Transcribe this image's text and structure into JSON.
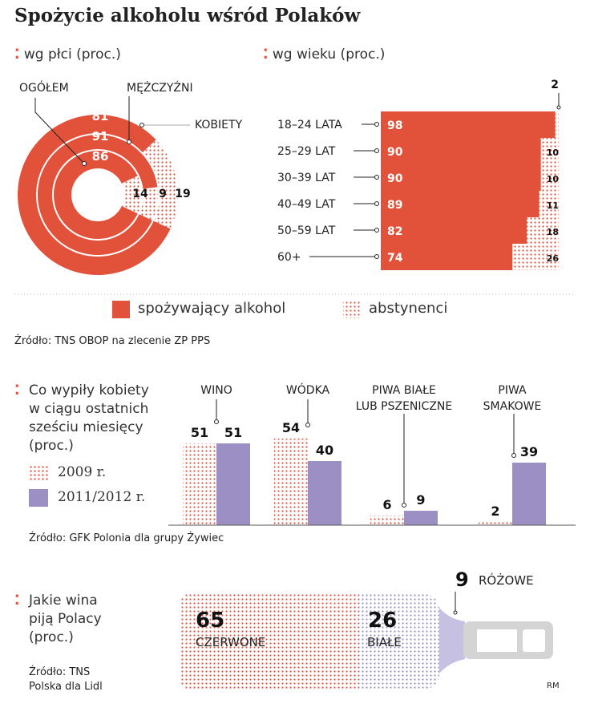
{
  "title": "Spożycie alkoholu wśród Polaków",
  "colors": {
    "red": "#e2523b",
    "purple": "#9b8fc4",
    "grey": "#d4d4d4"
  },
  "legend": {
    "drinking": "spożywający alkohol",
    "abstinent": "abstynenci"
  },
  "source1": "Źródło: TNS OBOP na zlecenie ZP PPS",
  "source2": "Źródło: GFK Polonia dla grupy Żywiec",
  "source3a": "Źródło: TNS",
  "source3b": "Polska dla Lidl",
  "author": "RM",
  "chart_data": [
    {
      "type": "pie",
      "title": "wg płci (proc.)",
      "rings": [
        {
          "name": "OGÓŁEM",
          "drinking": 86,
          "abstinent": 14
        },
        {
          "name": "MĘŻCZYŹNI",
          "drinking": 91,
          "abstinent": 9
        },
        {
          "name": "KOBIETY",
          "drinking": 81,
          "abstinent": 19
        }
      ]
    },
    {
      "type": "bar",
      "title": "wg wieku (proc.)",
      "categories": [
        "18–24 LATA",
        "25–29 LAT",
        "30–39 LAT",
        "40–49 LAT",
        "50–59 LAT",
        "60+"
      ],
      "series": [
        {
          "name": "spożywający alkohol",
          "values": [
            98,
            90,
            90,
            89,
            82,
            74
          ]
        },
        {
          "name": "abstynenci",
          "values": [
            2,
            10,
            10,
            11,
            18,
            26
          ]
        }
      ]
    },
    {
      "type": "bar",
      "title": "Co wypiły kobiety w ciągu ostatnich sześciu miesięcy (proc.)",
      "title_lines": [
        "Co wypiły kobiety",
        "w ciągu ostatnich",
        "sześciu miesięcy",
        "(proc.)"
      ],
      "categories": [
        [
          "WINO"
        ],
        [
          "WÓDKA"
        ],
        [
          "PIWA BIAŁE",
          "LUB PSZENICZNE"
        ],
        [
          "PIWA",
          "SMAKOWE"
        ]
      ],
      "series": [
        {
          "name": "2009 r.",
          "values": [
            51,
            54,
            6,
            2
          ]
        },
        {
          "name": "2011/2012 r.",
          "values": [
            51,
            40,
            9,
            39
          ]
        }
      ]
    },
    {
      "type": "bar",
      "title": "Jakie wina piją Polacy (proc.)",
      "title_lines": [
        "Jakie wina",
        "piją Polacy",
        "(proc.)"
      ],
      "categories": [
        "CZERWONE",
        "BIAŁE",
        "RÓŻOWE"
      ],
      "values": [
        65,
        26,
        9
      ]
    }
  ]
}
